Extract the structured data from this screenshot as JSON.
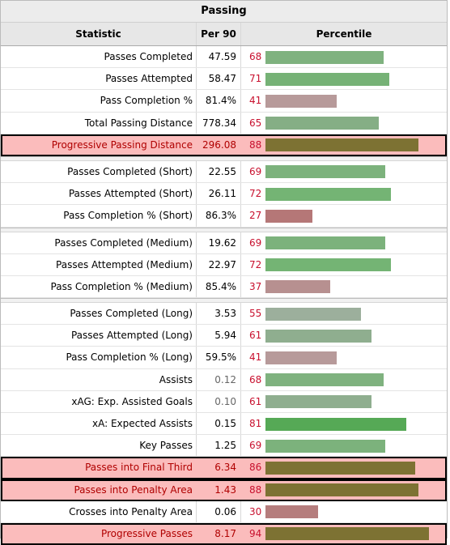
{
  "table": {
    "title": "Passing",
    "headers": {
      "statistic": "Statistic",
      "per90": "Per 90",
      "percentile": "Percentile"
    },
    "groups": [
      [
        {
          "label": "Passes Completed",
          "per90": "47.59",
          "pct": "68",
          "fill": 68,
          "color": "#7fb27f"
        },
        {
          "label": "Passes Attempted",
          "per90": "58.47",
          "pct": "71",
          "fill": 71,
          "color": "#76b276"
        },
        {
          "label": "Pass Completion %",
          "per90": "81.4%",
          "pct": "41",
          "fill": 41,
          "color": "#b79a9a"
        },
        {
          "label": "Total Passing Distance",
          "per90": "778.34",
          "pct": "65",
          "fill": 65,
          "color": "#85ae85"
        },
        {
          "label": "Progressive Passing Distance",
          "per90": "296.08",
          "pct": "88",
          "fill": 88,
          "color": "#7d7233",
          "highlight": true
        }
      ],
      [
        {
          "label": "Passes Completed (Short)",
          "per90": "22.55",
          "pct": "69",
          "fill": 69,
          "color": "#7cb27c"
        },
        {
          "label": "Passes Attempted (Short)",
          "per90": "26.11",
          "pct": "72",
          "fill": 72,
          "color": "#74b474"
        },
        {
          "label": "Pass Completion % (Short)",
          "per90": "86.3%",
          "pct": "27",
          "fill": 27,
          "color": "#b57777"
        }
      ],
      [
        {
          "label": "Passes Completed (Medium)",
          "per90": "19.62",
          "pct": "69",
          "fill": 69,
          "color": "#7cb27c"
        },
        {
          "label": "Passes Attempted (Medium)",
          "per90": "22.97",
          "pct": "72",
          "fill": 72,
          "color": "#74b474"
        },
        {
          "label": "Pass Completion % (Medium)",
          "per90": "85.4%",
          "pct": "37",
          "fill": 37,
          "color": "#b79090"
        }
      ],
      [
        {
          "label": "Passes Completed (Long)",
          "per90": "3.53",
          "pct": "55",
          "fill": 55,
          "color": "#9caf9c"
        },
        {
          "label": "Passes Attempted (Long)",
          "per90": "5.94",
          "pct": "61",
          "fill": 61,
          "color": "#8fae8f"
        },
        {
          "label": "Pass Completion % (Long)",
          "per90": "59.5%",
          "pct": "41",
          "fill": 41,
          "color": "#b79a9a"
        },
        {
          "label": "Assists",
          "per90": "0.12",
          "pct": "68",
          "fill": 68,
          "color": "#7fb27f",
          "muted": true
        },
        {
          "label": "xAG: Exp. Assisted Goals",
          "per90": "0.10",
          "pct": "61",
          "fill": 61,
          "color": "#8fae8f",
          "muted": true
        },
        {
          "label": "xA: Expected Assists",
          "per90": "0.15",
          "pct": "81",
          "fill": 81,
          "color": "#56a956"
        },
        {
          "label": "Key Passes",
          "per90": "1.25",
          "pct": "69",
          "fill": 69,
          "color": "#7cb27c"
        },
        {
          "label": "Passes into Final Third",
          "per90": "6.34",
          "pct": "86",
          "fill": 86,
          "color": "#7d7233",
          "highlight": true
        },
        {
          "label": "Passes into Penalty Area",
          "per90": "1.43",
          "pct": "88",
          "fill": 88,
          "color": "#7d7233",
          "highlight": true
        },
        {
          "label": "Crosses into Penalty Area",
          "per90": "0.06",
          "pct": "30",
          "fill": 30,
          "color": "#b57d7d"
        },
        {
          "label": "Progressive Passes",
          "per90": "8.17",
          "pct": "94",
          "fill": 94,
          "color": "#7d7233",
          "highlight": true
        }
      ]
    ]
  }
}
